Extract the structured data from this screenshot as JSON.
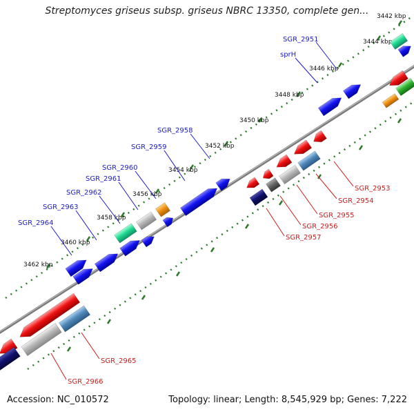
{
  "title": "Streptomyces griseus subsp. griseus NBRC 13350, complete gen...",
  "footer": {
    "accession": "Accession: NC_010572",
    "summary": "Topology: linear; Length: 8,545,929 bp; Genes: 7,222"
  },
  "colors": {
    "backbone": "#666666",
    "tick": "#2a7a2a",
    "label_top": "#1a1acc",
    "label_bottom": "#cc1a1a",
    "red": "#e81010",
    "blue": "#1010e8",
    "navy": "#101070",
    "gray": "#b0b0b0",
    "darkgray": "#666666",
    "steel": "#4f86b6",
    "green": "#20d890",
    "orange": "#f09010",
    "lime": "#30b030"
  },
  "ticks": [
    {
      "label": "3442 kbp",
      "pos": 3442
    },
    {
      "label": "3444 kbp",
      "pos": 3444
    },
    {
      "label": "3446 kbp",
      "pos": 3446
    },
    {
      "label": "3448 kbp",
      "pos": 3448
    },
    {
      "label": "3450 kbp",
      "pos": 3450
    },
    {
      "label": "3452 kbp",
      "pos": 3452
    },
    {
      "label": "3454 kbp",
      "pos": 3454
    },
    {
      "label": "3456 kbp",
      "pos": 3456
    },
    {
      "label": "3458 kbp",
      "pos": 3458
    },
    {
      "label": "3460 kbp",
      "pos": 3460
    },
    {
      "label": "3462 kbp",
      "pos": 3462
    }
  ],
  "top_labels": [
    {
      "id": "SGR_2951",
      "text": "SGR_2951"
    },
    {
      "id": "sprH",
      "text": "sprH"
    },
    {
      "id": "SGR_2958",
      "text": "SGR_2958"
    },
    {
      "id": "SGR_2959",
      "text": "SGR_2959"
    },
    {
      "id": "SGR_2960",
      "text": "SGR_2960"
    },
    {
      "id": "SGR_2961",
      "text": "SGR_2961"
    },
    {
      "id": "SGR_2962",
      "text": "SGR_2962"
    },
    {
      "id": "SGR_2963",
      "text": "SGR_2963"
    },
    {
      "id": "SGR_2964",
      "text": "SGR_2964"
    }
  ],
  "bottom_labels": [
    {
      "id": "SGR_2953",
      "text": "SGR_2953"
    },
    {
      "id": "SGR_2954",
      "text": "SGR_2954"
    },
    {
      "id": "SGR_2955",
      "text": "SGR_2955"
    },
    {
      "id": "SGR_2956",
      "text": "SGR_2956"
    },
    {
      "id": "SGR_2957",
      "text": "SGR_2957"
    },
    {
      "id": "SGR_2965",
      "text": "SGR_2965"
    },
    {
      "id": "SGR_2966",
      "text": "SGR_2966"
    }
  ]
}
